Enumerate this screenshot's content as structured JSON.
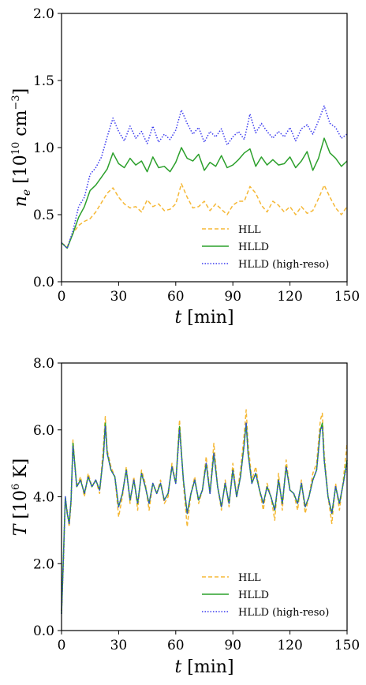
{
  "chart_data": [
    {
      "type": "line",
      "xlabel": "t [min]",
      "xlabel_var": "t",
      "xlabel_unit": " [min]",
      "ylabel_var": "n",
      "ylabel_sub": "e",
      "ylabel_unit_pre": " [10",
      "ylabel_unit_exp1": "10",
      "ylabel_unit_mid": " cm",
      "ylabel_unit_exp2": "−3",
      "ylabel_unit_post": "]",
      "xlim": [
        0,
        150
      ],
      "ylim": [
        0,
        2.0
      ],
      "xticks": [
        0,
        30,
        60,
        90,
        120,
        150
      ],
      "xtick_labels": [
        "0",
        "30",
        "60",
        "90",
        "120",
        "150"
      ],
      "yticks": [
        0,
        0.5,
        1.0,
        1.5,
        2.0
      ],
      "ytick_labels": [
        "0.0",
        "0.5",
        "1.0",
        "1.5",
        "2.0"
      ],
      "legend_position": "lower-right",
      "grid": false,
      "series": [
        {
          "name": "HLL",
          "color": "#f5b836",
          "dash": "dashed",
          "x": [
            0,
            3,
            6,
            9,
            12,
            15,
            18,
            21,
            24,
            27,
            30,
            33,
            36,
            39,
            42,
            45,
            48,
            51,
            54,
            57,
            60,
            63,
            66,
            69,
            72,
            75,
            78,
            81,
            84,
            87,
            90,
            93,
            96,
            99,
            102,
            105,
            108,
            111,
            114,
            117,
            120,
            123,
            126,
            129,
            132,
            135,
            138,
            141,
            144,
            147,
            150
          ],
          "values": [
            0.29,
            0.26,
            0.36,
            0.42,
            0.45,
            0.47,
            0.52,
            0.59,
            0.66,
            0.7,
            0.63,
            0.58,
            0.55,
            0.56,
            0.52,
            0.61,
            0.56,
            0.58,
            0.53,
            0.54,
            0.58,
            0.73,
            0.63,
            0.55,
            0.56,
            0.6,
            0.53,
            0.58,
            0.54,
            0.5,
            0.57,
            0.6,
            0.6,
            0.71,
            0.66,
            0.57,
            0.52,
            0.6,
            0.57,
            0.52,
            0.56,
            0.5,
            0.56,
            0.51,
            0.53,
            0.62,
            0.72,
            0.63,
            0.55,
            0.5,
            0.56
          ]
        },
        {
          "name": "HLLD",
          "color": "#2ca02c",
          "dash": "solid",
          "x": [
            0,
            3,
            6,
            9,
            12,
            15,
            18,
            21,
            24,
            27,
            30,
            33,
            36,
            39,
            42,
            45,
            48,
            51,
            54,
            57,
            60,
            63,
            66,
            69,
            72,
            75,
            78,
            81,
            84,
            87,
            90,
            93,
            96,
            99,
            102,
            105,
            108,
            111,
            114,
            117,
            120,
            123,
            126,
            129,
            132,
            135,
            138,
            141,
            144,
            147,
            150
          ],
          "values": [
            0.29,
            0.25,
            0.36,
            0.48,
            0.56,
            0.68,
            0.72,
            0.78,
            0.84,
            0.96,
            0.88,
            0.85,
            0.92,
            0.87,
            0.9,
            0.82,
            0.93,
            0.85,
            0.86,
            0.82,
            0.89,
            1.0,
            0.92,
            0.9,
            0.95,
            0.83,
            0.89,
            0.86,
            0.94,
            0.85,
            0.87,
            0.91,
            0.96,
            0.99,
            0.86,
            0.93,
            0.87,
            0.91,
            0.87,
            0.88,
            0.93,
            0.85,
            0.9,
            0.97,
            0.83,
            0.92,
            1.07,
            0.96,
            0.92,
            0.86,
            0.9
          ]
        },
        {
          "name": "HLLD (high-reso)",
          "color": "#3a3aef",
          "dash": "dotted",
          "x": [
            0,
            3,
            6,
            9,
            12,
            15,
            18,
            21,
            24,
            27,
            30,
            33,
            36,
            39,
            42,
            45,
            48,
            51,
            54,
            57,
            60,
            63,
            66,
            69,
            72,
            75,
            78,
            81,
            84,
            87,
            90,
            93,
            96,
            99,
            102,
            105,
            108,
            111,
            114,
            117,
            120,
            123,
            126,
            129,
            132,
            135,
            138,
            141,
            144,
            147,
            150
          ],
          "values": [
            0.29,
            0.25,
            0.38,
            0.56,
            0.63,
            0.8,
            0.85,
            0.93,
            1.08,
            1.22,
            1.12,
            1.05,
            1.16,
            1.07,
            1.12,
            1.03,
            1.16,
            1.04,
            1.1,
            1.06,
            1.13,
            1.28,
            1.18,
            1.1,
            1.15,
            1.04,
            1.12,
            1.08,
            1.14,
            1.02,
            1.08,
            1.12,
            1.06,
            1.25,
            1.11,
            1.18,
            1.12,
            1.07,
            1.12,
            1.08,
            1.15,
            1.05,
            1.14,
            1.17,
            1.1,
            1.2,
            1.31,
            1.18,
            1.15,
            1.07,
            1.1
          ]
        }
      ]
    },
    {
      "type": "line",
      "xlabel": "t [min]",
      "xlabel_var": "t",
      "xlabel_unit": " [min]",
      "ylabel_var": "T",
      "ylabel_unit_pre": " [10",
      "ylabel_unit_exp1": "6",
      "ylabel_unit_mid": " K",
      "ylabel_unit_post": "]",
      "xlim": [
        0,
        150
      ],
      "ylim": [
        0,
        8.0
      ],
      "xticks": [
        0,
        30,
        60,
        90,
        120,
        150
      ],
      "xtick_labels": [
        "0",
        "30",
        "60",
        "90",
        "120",
        "150"
      ],
      "yticks": [
        0,
        2.0,
        4.0,
        6.0,
        8.0
      ],
      "ytick_labels": [
        "0.0",
        "2.0",
        "4.0",
        "6.0",
        "8.0"
      ],
      "legend_position": "lower-right",
      "grid": false,
      "series": [
        {
          "name": "HLL",
          "color": "#f5b836",
          "dash": "dashed",
          "x": [
            0,
            1,
            2,
            3,
            4,
            5,
            6,
            8,
            10,
            12,
            14,
            16,
            18,
            20,
            22,
            23,
            24,
            26,
            28,
            30,
            32,
            34,
            36,
            38,
            40,
            42,
            44,
            46,
            48,
            50,
            52,
            54,
            56,
            58,
            60,
            62,
            64,
            66,
            68,
            70,
            72,
            74,
            76,
            78,
            80,
            82,
            84,
            86,
            88,
            90,
            92,
            94,
            96,
            97,
            98,
            100,
            102,
            104,
            106,
            108,
            110,
            112,
            114,
            116,
            118,
            120,
            122,
            124,
            126,
            128,
            130,
            132,
            134,
            136,
            137,
            138,
            140,
            142,
            144,
            146,
            148,
            150
          ],
          "values": [
            0.6,
            2.0,
            3.9,
            3.6,
            3.1,
            3.8,
            5.7,
            4.3,
            4.6,
            4.0,
            4.7,
            4.3,
            4.5,
            4.1,
            5.5,
            6.4,
            5.4,
            4.9,
            4.6,
            3.4,
            4.0,
            4.9,
            3.8,
            4.6,
            3.6,
            4.8,
            4.4,
            3.6,
            4.4,
            4.1,
            4.5,
            3.8,
            4.0,
            5.0,
            4.4,
            6.3,
            4.4,
            3.1,
            4.1,
            4.6,
            3.8,
            4.2,
            5.2,
            4.1,
            5.6,
            4.3,
            3.6,
            4.5,
            3.7,
            5.0,
            4.0,
            4.8,
            5.9,
            6.6,
            5.6,
            4.5,
            4.9,
            4.2,
            3.6,
            4.4,
            4.0,
            3.3,
            4.7,
            3.6,
            5.1,
            4.2,
            4.1,
            3.6,
            4.5,
            3.5,
            4.0,
            4.7,
            5.0,
            6.3,
            6.5,
            5.3,
            4.0,
            3.2,
            4.4,
            3.6,
            4.5,
            5.6
          ]
        },
        {
          "name": "HLLD",
          "color": "#2ca02c",
          "dash": "solid",
          "x": [
            0,
            1,
            2,
            3,
            4,
            5,
            6,
            8,
            10,
            12,
            14,
            16,
            18,
            20,
            22,
            23,
            24,
            26,
            28,
            30,
            32,
            34,
            36,
            38,
            40,
            42,
            44,
            46,
            48,
            50,
            52,
            54,
            56,
            58,
            60,
            62,
            64,
            66,
            68,
            70,
            72,
            74,
            76,
            78,
            80,
            82,
            84,
            86,
            88,
            90,
            92,
            94,
            96,
            97,
            98,
            100,
            102,
            104,
            106,
            108,
            110,
            112,
            114,
            116,
            118,
            120,
            122,
            124,
            126,
            128,
            130,
            132,
            134,
            136,
            137,
            138,
            140,
            142,
            144,
            146,
            148,
            150
          ],
          "values": [
            0.5,
            2.2,
            4.0,
            3.5,
            3.2,
            3.9,
            5.6,
            4.3,
            4.5,
            4.1,
            4.6,
            4.3,
            4.5,
            4.2,
            5.2,
            6.2,
            5.3,
            4.8,
            4.6,
            3.7,
            4.1,
            4.8,
            3.9,
            4.5,
            3.8,
            4.7,
            4.3,
            3.8,
            4.4,
            4.1,
            4.4,
            3.9,
            4.1,
            4.9,
            4.4,
            6.1,
            4.5,
            3.5,
            4.1,
            4.5,
            3.9,
            4.2,
            5.0,
            4.1,
            5.3,
            4.3,
            3.7,
            4.4,
            3.8,
            4.8,
            4.0,
            4.6,
            5.6,
            6.2,
            5.3,
            4.4,
            4.7,
            4.2,
            3.8,
            4.3,
            4.0,
            3.6,
            4.5,
            3.8,
            4.9,
            4.2,
            4.1,
            3.8,
            4.4,
            3.7,
            4.0,
            4.5,
            4.8,
            6.0,
            6.2,
            5.1,
            4.0,
            3.5,
            4.3,
            3.8,
            4.4,
            5.1
          ]
        },
        {
          "name": "HLLD (high-reso)",
          "color": "#3a3aef",
          "dash": "dotted",
          "x": [
            0,
            1,
            2,
            3,
            4,
            5,
            6,
            8,
            10,
            12,
            14,
            16,
            18,
            20,
            22,
            23,
            24,
            26,
            28,
            30,
            32,
            34,
            36,
            38,
            40,
            42,
            44,
            46,
            48,
            50,
            52,
            54,
            56,
            58,
            60,
            62,
            64,
            66,
            68,
            70,
            72,
            74,
            76,
            78,
            80,
            82,
            84,
            86,
            88,
            90,
            92,
            94,
            96,
            97,
            98,
            100,
            102,
            104,
            106,
            108,
            110,
            112,
            114,
            116,
            118,
            120,
            122,
            124,
            126,
            128,
            130,
            132,
            134,
            136,
            137,
            138,
            140,
            142,
            144,
            146,
            148,
            150
          ],
          "values": [
            0.5,
            2.1,
            4.0,
            3.5,
            3.2,
            3.9,
            5.5,
            4.3,
            4.5,
            4.1,
            4.6,
            4.3,
            4.5,
            4.2,
            5.2,
            6.1,
            5.3,
            4.8,
            4.6,
            3.7,
            4.1,
            4.8,
            3.9,
            4.5,
            3.8,
            4.7,
            4.3,
            3.8,
            4.4,
            4.1,
            4.4,
            3.9,
            4.1,
            4.9,
            4.4,
            6.0,
            4.5,
            3.5,
            4.1,
            4.5,
            3.9,
            4.2,
            5.0,
            4.1,
            5.3,
            4.3,
            3.7,
            4.4,
            3.8,
            4.8,
            4.0,
            4.6,
            5.6,
            6.2,
            5.3,
            4.4,
            4.7,
            4.2,
            3.8,
            4.3,
            4.0,
            3.6,
            4.5,
            3.8,
            4.9,
            4.2,
            4.1,
            3.8,
            4.4,
            3.7,
            4.0,
            4.5,
            4.8,
            6.0,
            6.1,
            5.1,
            4.0,
            3.5,
            4.3,
            3.8,
            4.4,
            5.0
          ]
        }
      ]
    }
  ]
}
